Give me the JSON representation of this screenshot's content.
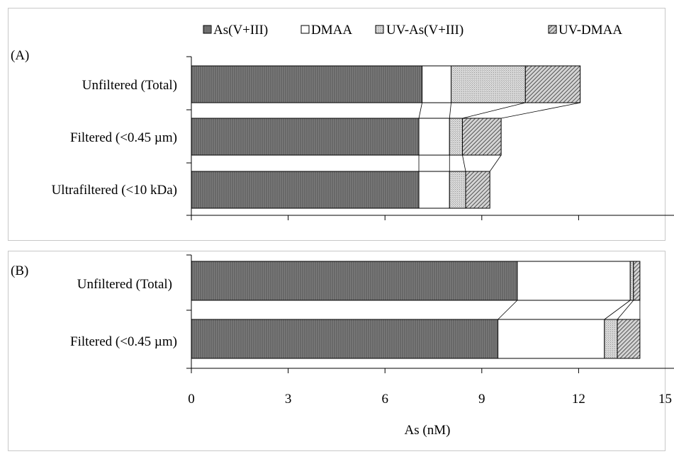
{
  "chart_data": [
    {
      "type": "bar",
      "orientation": "horizontal",
      "stacked": true,
      "panel_label": "(A)",
      "categories": [
        "Unfiltered (Total)",
        "Filtered (<0.45 µm)",
        "Ultrafiltered (<10 kDa)"
      ],
      "series": [
        {
          "name": "As(V+III)",
          "values": [
            7.15,
            7.05,
            7.05
          ]
        },
        {
          "name": "DMAA",
          "values": [
            0.9,
            0.95,
            0.95
          ]
        },
        {
          "name": "UV-As(V+III)",
          "values": [
            2.3,
            0.4,
            0.5
          ]
        },
        {
          "name": "UV-DMAA",
          "values": [
            1.7,
            1.2,
            0.75
          ]
        }
      ],
      "xlim": [
        0,
        15
      ],
      "legend_position": "top",
      "grid": false
    },
    {
      "type": "bar",
      "orientation": "horizontal",
      "stacked": true,
      "panel_label": "(B)",
      "categories": [
        "Unfiltered (Total)",
        "Filtered (<0.45 µm)"
      ],
      "series": [
        {
          "name": "As(V+III)",
          "values": [
            10.1,
            9.5
          ]
        },
        {
          "name": "DMAA",
          "values": [
            3.5,
            3.3
          ]
        },
        {
          "name": "UV-As(V+III)",
          "values": [
            0.1,
            0.4
          ]
        },
        {
          "name": "UV-DMAA",
          "values": [
            0.2,
            0.7
          ]
        }
      ],
      "xlim": [
        0,
        15
      ],
      "xticks": [
        0,
        3,
        6,
        9,
        12,
        15
      ],
      "xlabel": "As (nM)",
      "grid": false
    }
  ]
}
